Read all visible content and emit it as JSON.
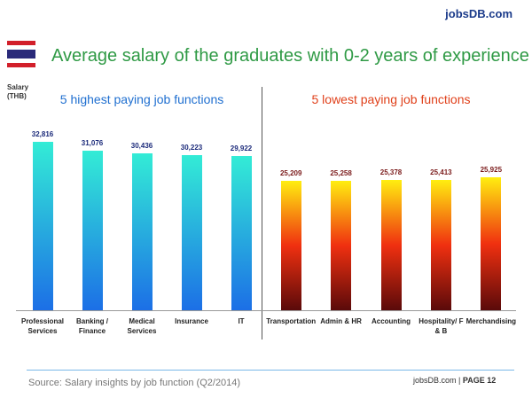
{
  "header": {
    "logo": "jobsDB.com",
    "title": "Average salary of the graduates with 0-2 years of experience"
  },
  "chart_data": [
    {
      "type": "bar",
      "title": "5 highest paying job functions",
      "ylabel": [
        "Salary",
        "(THB)"
      ],
      "categories": [
        "Professional Services",
        "Banking / Finance",
        "Medical Services",
        "Insurance",
        "IT"
      ],
      "values": [
        32816,
        31076,
        30436,
        30223,
        29922
      ],
      "value_labels": [
        "32,816",
        "31,076",
        "30,436",
        "30,223",
        "29,922"
      ],
      "colors": [
        "#33ecd6",
        "#1c6fe6"
      ],
      "title_color": "#1f6fd0",
      "label_color": "#1b2a7a",
      "ylim": [
        0,
        35000
      ]
    },
    {
      "type": "bar",
      "title": "5 lowest paying job functions",
      "categories": [
        "Transportation",
        "Admin & HR",
        "Accounting",
        "Hospitality/ F & B",
        "Merchandising"
      ],
      "values": [
        25209,
        25258,
        25378,
        25413,
        25925
      ],
      "value_labels": [
        "25,209",
        "25,258",
        "25,378",
        "25,413",
        "25,925"
      ],
      "colors": [
        "#ffee10",
        "#f03010",
        "#5a0a0a"
      ],
      "title_color": "#e0401a",
      "label_color": "#7a1a1a",
      "ylim": [
        0,
        35000
      ]
    }
  ],
  "footer": {
    "source": "Source: Salary insights by job function (Q2/2014)",
    "site": "jobsDB.com",
    "page": "PAGE 12"
  }
}
